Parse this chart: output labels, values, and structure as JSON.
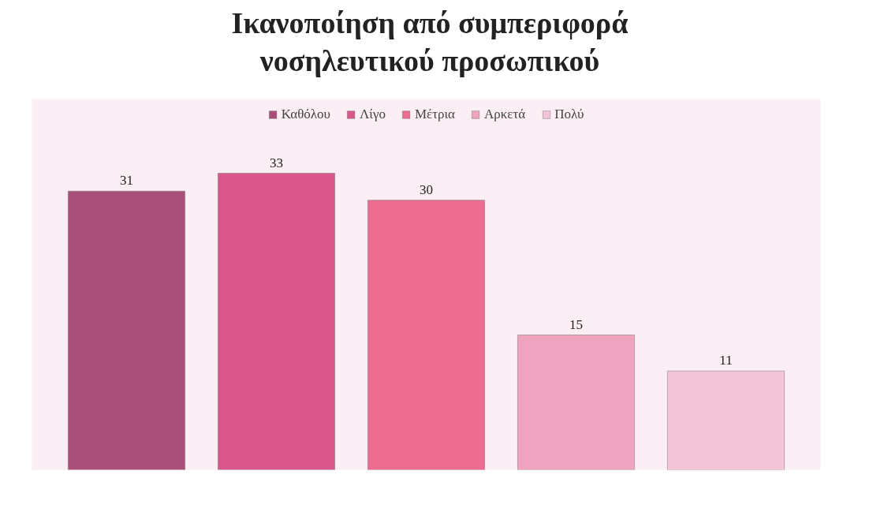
{
  "chart_data": {
    "type": "bar",
    "title": "Ικανοποίηση από συμπεριφορά\nνοσηλευτικού προσωπικού",
    "categories": [
      null
    ],
    "series": [
      {
        "name": "Καθόλου",
        "color": "#a94f78",
        "values": [
          31
        ]
      },
      {
        "name": "Λίγο",
        "color": "#d9578a",
        "values": [
          33
        ]
      },
      {
        "name": "Μέτρια",
        "color": "#ec6c92",
        "values": [
          30
        ]
      },
      {
        "name": "Αρκετά",
        "color": "#f0a3bf",
        "values": [
          15
        ]
      },
      {
        "name": "Πολύ",
        "color": "#f4c5d8",
        "values": [
          11
        ]
      }
    ],
    "data_labels": true,
    "legend": "top",
    "grid": false,
    "tick_labels": false
  }
}
